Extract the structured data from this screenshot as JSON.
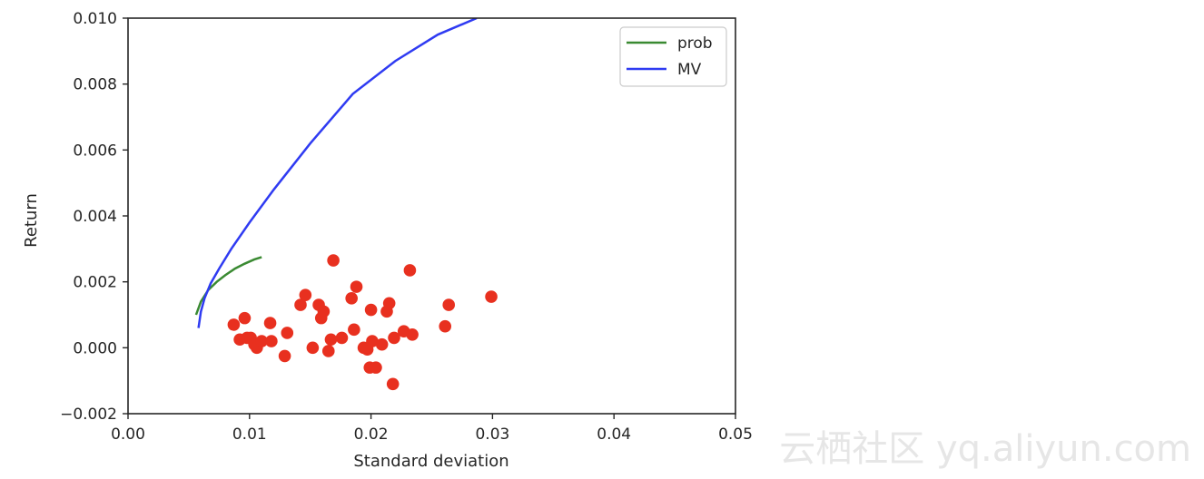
{
  "chart_data": {
    "type": "scatter",
    "xlabel": "Standard deviation",
    "ylabel": "Return",
    "xlim": [
      0.0,
      0.05
    ],
    "ylim": [
      -0.002,
      0.01
    ],
    "x_ticks": [
      0.0,
      0.01,
      0.02,
      0.03,
      0.04,
      0.05
    ],
    "x_tick_labels": [
      "0.00",
      "0.01",
      "0.02",
      "0.03",
      "0.04",
      "0.05"
    ],
    "y_ticks": [
      -0.002,
      0.0,
      0.002,
      0.004,
      0.006,
      0.008,
      0.01
    ],
    "y_tick_labels": [
      "−0.002",
      "0.000",
      "0.002",
      "0.004",
      "0.006",
      "0.008",
      "0.010"
    ],
    "grid": false,
    "legend": {
      "placement": "top-right",
      "entries": [
        "prob",
        "MV"
      ]
    },
    "series": [
      {
        "name": "prob",
        "kind": "line",
        "color": "#3a8a32",
        "x": [
          0.0056,
          0.006,
          0.0066,
          0.0073,
          0.008,
          0.0088,
          0.0096,
          0.0104,
          0.011
        ],
        "y": [
          0.001,
          0.0014,
          0.00175,
          0.002,
          0.0022,
          0.0024,
          0.00255,
          0.00268,
          0.00275
        ]
      },
      {
        "name": "MV",
        "kind": "line",
        "color": "#2f3bf2",
        "x": [
          0.0058,
          0.006,
          0.0063,
          0.0068,
          0.0075,
          0.0085,
          0.01,
          0.012,
          0.015,
          0.0185,
          0.022,
          0.0255,
          0.0287
        ],
        "y": [
          0.0006,
          0.0011,
          0.0015,
          0.00195,
          0.0024,
          0.003,
          0.0038,
          0.0048,
          0.0062,
          0.0077,
          0.0087,
          0.0095,
          0.01
        ]
      },
      {
        "name": "",
        "kind": "scatter",
        "color": "#e8301f",
        "points": [
          [
            0.0087,
            0.0007
          ],
          [
            0.0092,
            0.00025
          ],
          [
            0.0096,
            0.0009
          ],
          [
            0.0098,
            0.0003
          ],
          [
            0.0101,
            0.0003
          ],
          [
            0.0104,
            0.0001
          ],
          [
            0.0106,
            0.0
          ],
          [
            0.011,
            0.0002
          ],
          [
            0.0117,
            0.00075
          ],
          [
            0.0118,
            0.0002
          ],
          [
            0.0129,
            -0.00025
          ],
          [
            0.0131,
            0.00045
          ],
          [
            0.0142,
            0.0013
          ],
          [
            0.0146,
            0.0016
          ],
          [
            0.0152,
            0.0
          ],
          [
            0.0157,
            0.0013
          ],
          [
            0.0159,
            0.0009
          ],
          [
            0.0161,
            0.0011
          ],
          [
            0.0165,
            -0.0001
          ],
          [
            0.0167,
            0.00025
          ],
          [
            0.0169,
            0.00265
          ],
          [
            0.0176,
            0.0003
          ],
          [
            0.0184,
            0.0015
          ],
          [
            0.0186,
            0.00055
          ],
          [
            0.0188,
            0.00185
          ],
          [
            0.0194,
            0.0
          ],
          [
            0.0197,
            -5e-05
          ],
          [
            0.0199,
            -0.0006
          ],
          [
            0.02,
            0.00115
          ],
          [
            0.0201,
            0.0002
          ],
          [
            0.0204,
            -0.0006
          ],
          [
            0.0209,
            0.0001
          ],
          [
            0.0213,
            0.0011
          ],
          [
            0.0215,
            0.00135
          ],
          [
            0.0218,
            -0.0011
          ],
          [
            0.0219,
            0.0003
          ],
          [
            0.0227,
            0.0005
          ],
          [
            0.0232,
            0.00235
          ],
          [
            0.0234,
            0.0004
          ],
          [
            0.0261,
            0.00065
          ],
          [
            0.0264,
            0.0013
          ],
          [
            0.0299,
            0.00155
          ]
        ]
      }
    ]
  },
  "watermark": "云栖社区 yq.aliyun.com"
}
